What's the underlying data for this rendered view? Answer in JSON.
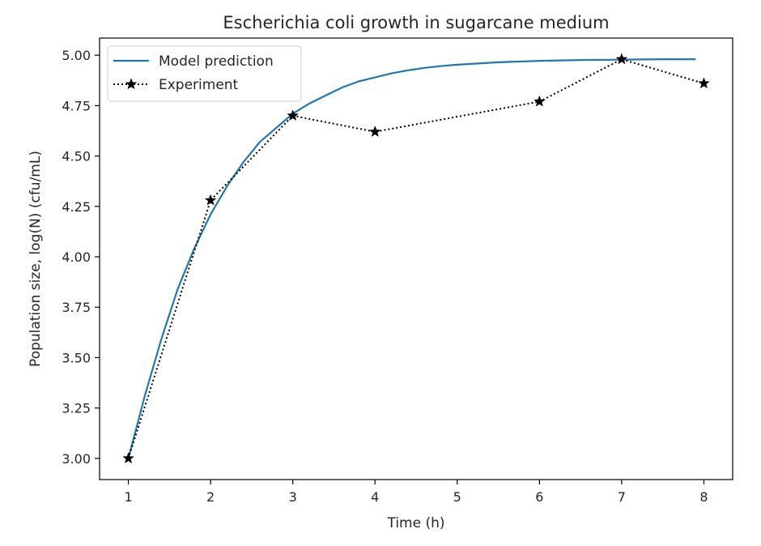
{
  "chart_data": {
    "type": "line",
    "title": "Escherichia coli growth in sugarcane medium",
    "xlabel": "Time (h)",
    "ylabel": "Population size,  log(N) (cfu/mL)",
    "xlim": [
      0.65,
      8.35
    ],
    "ylim": [
      2.895,
      5.085
    ],
    "xticks": [
      1,
      2,
      3,
      4,
      5,
      6,
      7,
      8
    ],
    "xtick_labels": [
      "1",
      "2",
      "3",
      "4",
      "5",
      "6",
      "7",
      "8"
    ],
    "yticks": [
      3.0,
      3.25,
      3.5,
      3.75,
      4.0,
      4.25,
      4.5,
      4.75,
      5.0
    ],
    "ytick_labels": [
      "3.00",
      "3.25",
      "3.50",
      "3.75",
      "4.00",
      "4.25",
      "4.50",
      "4.75",
      "5.00"
    ],
    "grid": false,
    "legend_position": "top-left",
    "series": [
      {
        "name": "Model prediction",
        "style": "solid",
        "color": "#1f77b4",
        "x": [
          1.0,
          1.2,
          1.4,
          1.6,
          1.8,
          2.0,
          2.2,
          2.4,
          2.6,
          2.8,
          3.0,
          3.2,
          3.4,
          3.6,
          3.8,
          4.0,
          4.2,
          4.4,
          4.6,
          4.8,
          5.0,
          5.5,
          6.0,
          6.5,
          7.0,
          7.5,
          7.9
        ],
        "y": [
          3.0,
          3.31,
          3.59,
          3.84,
          4.04,
          4.21,
          4.35,
          4.47,
          4.57,
          4.64,
          4.71,
          4.76,
          4.8,
          4.84,
          4.87,
          4.89,
          4.91,
          4.925,
          4.937,
          4.946,
          4.953,
          4.965,
          4.972,
          4.976,
          4.978,
          4.98,
          4.98
        ]
      },
      {
        "name": "Experiment",
        "style": "dotted",
        "marker": "star",
        "color": "#000000",
        "x": [
          1,
          2,
          3,
          4,
          6,
          7,
          8
        ],
        "y": [
          3.0,
          4.28,
          4.7,
          4.62,
          4.77,
          4.98,
          4.86
        ]
      }
    ]
  }
}
